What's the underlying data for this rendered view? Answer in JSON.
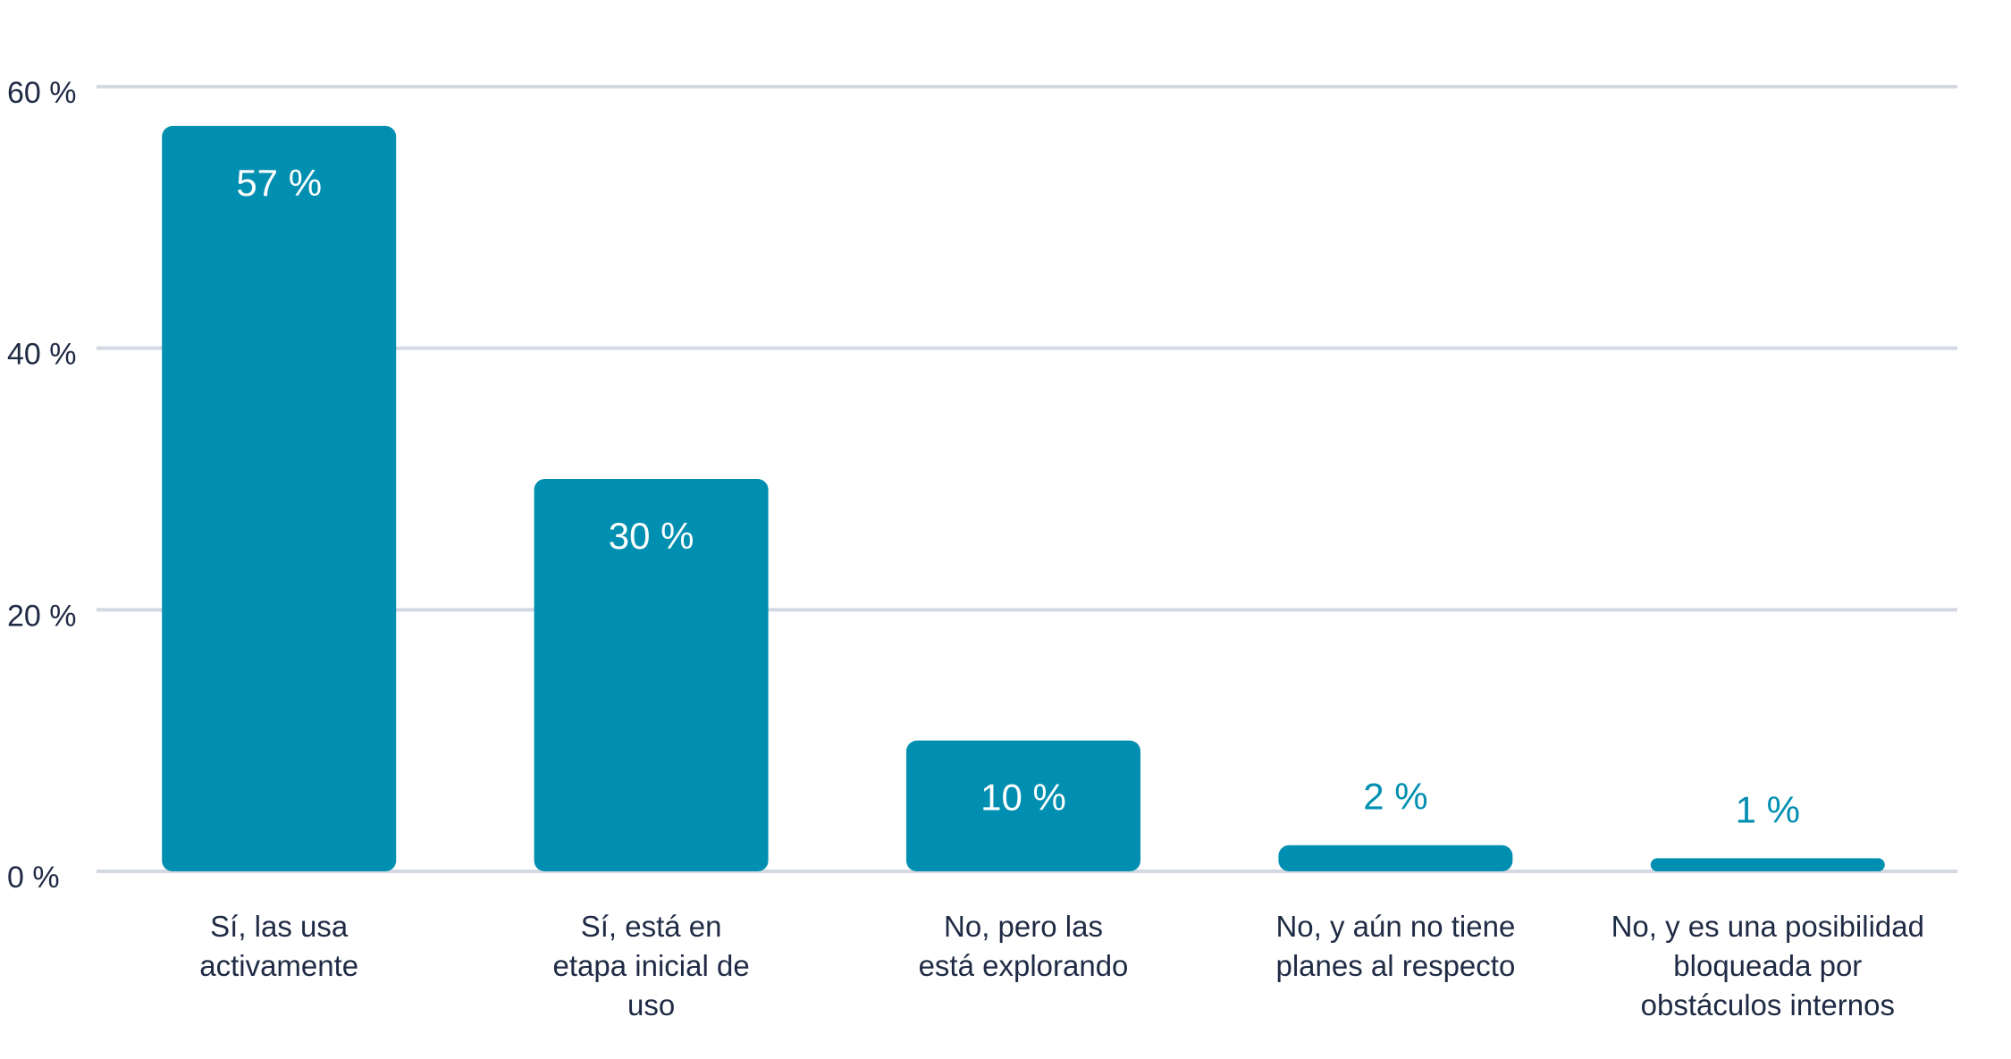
{
  "chart_data": {
    "type": "bar",
    "categories": [
      [
        "Sí, las usa",
        "activamente"
      ],
      [
        "Sí, está en",
        "etapa inicial de",
        "uso"
      ],
      [
        "No, pero las",
        "está explorando"
      ],
      [
        "No, y aún no tiene",
        "planes al respecto"
      ],
      [
        "No, y es una posibilidad",
        "bloqueada por",
        "obstáculos internos"
      ]
    ],
    "values": [
      57,
      30,
      10,
      2,
      1
    ],
    "value_labels": [
      "57 %",
      "30 %",
      "10 %",
      "2 %",
      "1 %"
    ],
    "y_ticks": [
      0,
      20,
      40,
      60
    ],
    "y_tick_labels": [
      "0 %",
      "20 %",
      "40 %",
      "60 %"
    ],
    "ylim": [
      0,
      60
    ],
    "grid": true,
    "title": "",
    "xlabel": "",
    "ylabel": "",
    "colors": {
      "bar": "#008fb0",
      "grid": "#d3d8e2",
      "text": "#1f2a44",
      "label_inside": "#ffffff",
      "label_outside": "#008fb0"
    }
  }
}
